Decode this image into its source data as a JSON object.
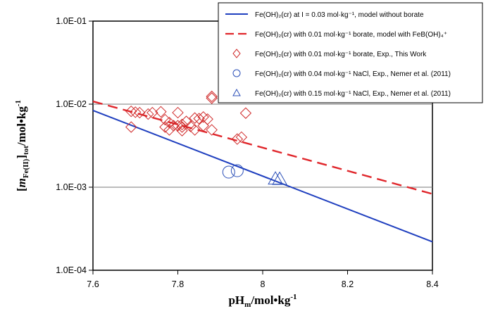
{
  "chart_data": {
    "type": "scatter",
    "xlabel": {
      "main": "pH",
      "sub": "m",
      "unit": "/mol•kg",
      "sup": "-1"
    },
    "ylabel": {
      "open": "[",
      "m": "m",
      "sub": "Fe(II)",
      "close": "]",
      "sub2": "tot",
      "unit": "/mol•kg",
      "sup": "-1"
    },
    "xlim": [
      7.6,
      8.4
    ],
    "ylim": [
      0.0001,
      0.1
    ],
    "yscale": "log",
    "x_ticks": [
      "7.6",
      "7.8",
      "8",
      "8.2",
      "8.4"
    ],
    "y_ticks": [
      "1.0E-04",
      "1.0E-03",
      "1.0E-02",
      "1.0E-01"
    ],
    "legend_position": "top-right",
    "series": [
      {
        "name": "Fe(OH)₂(cr) at I = 0.03 mol·kg⁻¹, model without borate",
        "kind": "line",
        "style": "solid",
        "color": "#1f3fbf",
        "x": [
          7.6,
          8.4
        ],
        "y": [
          0.0084,
          0.00022
        ]
      },
      {
        "name": "Fe(OH)₂(cr) with 0.01 mol·kg⁻¹ borate, model with FeB(OH)₄⁺",
        "kind": "line",
        "style": "dashed",
        "color": "#e0262b",
        "x": [
          7.6,
          8.4
        ],
        "y": [
          0.0108,
          0.00083
        ]
      },
      {
        "name": "Fe(OH)₂(cr) with 0.01 mol·kg⁻¹ borate, Exp., This Work",
        "kind": "scatter",
        "marker": "diamond",
        "color": "#d02a2a",
        "x": [
          7.69,
          7.69,
          7.7,
          7.71,
          7.73,
          7.74,
          7.76,
          7.77,
          7.77,
          7.78,
          7.78,
          7.79,
          7.8,
          7.8,
          7.81,
          7.81,
          7.81,
          7.82,
          7.83,
          7.84,
          7.84,
          7.85,
          7.86,
          7.86,
          7.87,
          7.88,
          7.88,
          7.88,
          7.94,
          7.95,
          7.96
        ],
        "y": [
          0.0053,
          0.0082,
          0.008,
          0.0079,
          0.0076,
          0.0079,
          0.0081,
          0.0065,
          0.0053,
          0.0049,
          0.006,
          0.0055,
          0.0055,
          0.0079,
          0.0057,
          0.0053,
          0.0048,
          0.0062,
          0.0054,
          0.0068,
          0.0049,
          0.0067,
          0.0055,
          0.007,
          0.0066,
          0.0049,
          0.0118,
          0.0124,
          0.0038,
          0.004,
          0.0078
        ]
      },
      {
        "name": "Fe(OH)₂(cr) with 0.04 mol·kg⁻¹ NaCl, Exp., Nemer et al. (2011)",
        "kind": "scatter",
        "marker": "circle",
        "color": "#2b4fb8",
        "x": [
          7.92,
          7.94
        ],
        "y": [
          0.00152,
          0.00158
        ]
      },
      {
        "name": "Fe(OH)₂(cr) with 0.15 mol·kg⁻¹ NaCl, Exp., Nemer et al. (2011)",
        "kind": "scatter",
        "marker": "triangle",
        "color": "#2b4fb8",
        "x": [
          8.03,
          8.04
        ],
        "y": [
          0.00126,
          0.00125
        ]
      }
    ]
  }
}
